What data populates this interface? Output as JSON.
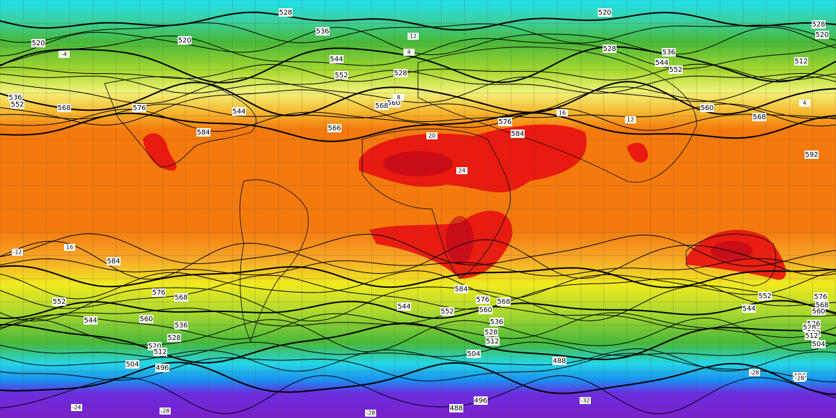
{
  "map": {
    "height_labels": [
      "528",
      "536",
      "520",
      "528",
      "520",
      "520",
      "520",
      "544",
      "552",
      "528",
      "528",
      "536",
      "544",
      "552",
      "512",
      "536",
      "552",
      "568",
      "576",
      "544",
      "560",
      "568",
      "576",
      "584",
      "560",
      "568",
      "566",
      "584",
      "592",
      "584",
      "576",
      "568",
      "560",
      "552",
      "544",
      "536",
      "528",
      "520",
      "512",
      "504",
      "496",
      "584",
      "576",
      "568",
      "560",
      "552",
      "544",
      "536",
      "528",
      "512",
      "504",
      "488",
      "488",
      "496",
      "576",
      "568",
      "560",
      "552",
      "544",
      "536",
      "528",
      "520",
      "512",
      "504",
      "496"
    ],
    "temperature_labels": [
      "12",
      "4",
      "-4",
      "-12",
      "16",
      "20",
      "24",
      "16",
      "12",
      "-28",
      "-24",
      "-28",
      "-28",
      "-32",
      "-28",
      "8",
      "4"
    ]
  }
}
